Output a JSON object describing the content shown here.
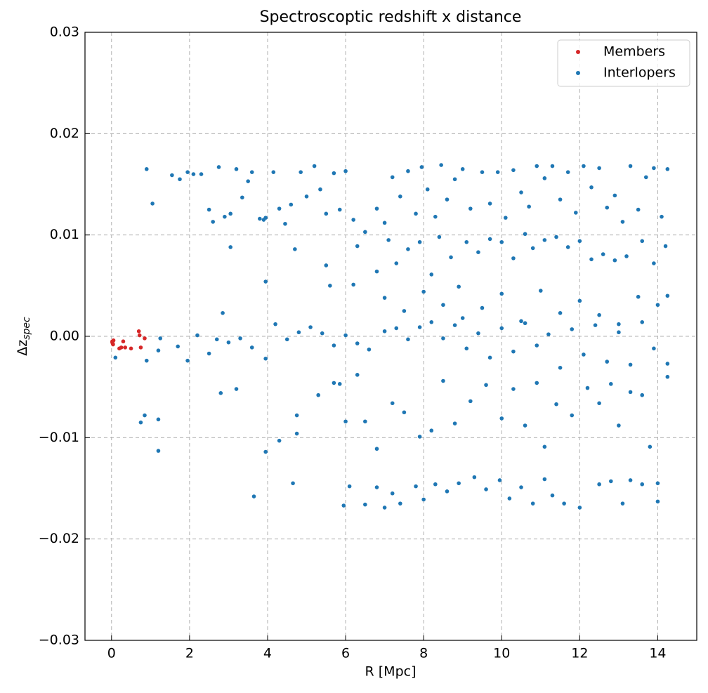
{
  "chart_data": {
    "type": "scatter",
    "title": "Spectroscoptic redshift x distance",
    "xlabel": "R [Mpc]",
    "ylabel": {
      "main": "Δz",
      "sub": "spec"
    },
    "xlim": [
      -0.68,
      15.0
    ],
    "ylim": [
      -0.03,
      0.03
    ],
    "xticks": [
      0,
      2,
      4,
      6,
      8,
      10,
      12,
      14
    ],
    "yticks": [
      {
        "value": -0.03,
        "label": "−0.03"
      },
      {
        "value": -0.02,
        "label": "−0.02"
      },
      {
        "value": -0.01,
        "label": "−0.01"
      },
      {
        "value": 0,
        "label": "0.00"
      },
      0.01,
      0.02,
      0.03
    ],
    "grid": true,
    "legend": "upper right",
    "series": [
      {
        "name": "Members",
        "color": "#d62728",
        "x": [
          0.02,
          0.03,
          0.05,
          0.04,
          0.2,
          0.25,
          0.3,
          0.35,
          0.5,
          0.7,
          0.72,
          0.75,
          0.85,
          0.02
        ],
        "values": [
          -0.0005,
          -0.0007,
          -0.0004,
          -0.0008,
          -0.0012,
          -0.0011,
          -0.0005,
          -0.0011,
          -0.0012,
          0.0005,
          0.0001,
          -0.0011,
          -0.0002,
          -0.0006
        ]
      },
      {
        "name": "Interlopers",
        "color": "#1f77b4",
        "x": [
          0.9,
          1.05,
          1.55,
          1.75,
          1.95,
          2.1,
          2.3,
          2.5,
          2.6,
          2.75,
          2.9,
          3.05,
          3.2,
          3.35,
          3.5,
          3.6,
          3.8,
          3.95,
          4.15,
          4.3,
          4.45,
          4.6,
          4.85,
          5.0,
          5.2,
          5.35,
          5.5,
          5.7,
          5.85,
          6.0,
          6.2,
          6.5,
          6.8,
          7.0,
          7.2,
          7.4,
          7.6,
          7.8,
          7.95,
          8.1,
          8.3,
          8.45,
          8.6,
          8.8,
          9.0,
          9.2,
          9.5,
          9.7,
          9.9,
          10.1,
          10.3,
          10.5,
          10.7,
          10.9,
          11.1,
          11.3,
          11.5,
          11.7,
          11.9,
          12.1,
          12.3,
          12.5,
          12.7,
          12.9,
          13.1,
          13.3,
          13.5,
          13.7,
          13.9,
          14.1,
          14.25,
          6.3,
          6.8,
          7.1,
          7.3,
          7.6,
          7.9,
          8.2,
          8.4,
          8.7,
          8.9,
          9.1,
          9.4,
          9.7,
          10.0,
          10.3,
          10.6,
          10.8,
          11.1,
          11.4,
          11.7,
          12.0,
          12.3,
          12.6,
          12.9,
          13.2,
          13.6,
          13.9,
          14.2,
          3.05,
          3.9,
          4.7,
          5.5,
          7.0,
          7.5,
          8.0,
          8.5,
          9.0,
          9.5,
          10.0,
          10.5,
          11.0,
          11.5,
          12.0,
          12.5,
          13.0,
          13.5,
          14.0,
          14.25,
          3.95,
          5.6,
          6.2,
          2.85,
          0.1,
          0.9,
          1.25,
          1.2,
          1.7,
          1.95,
          2.2,
          2.5,
          2.7,
          3.0,
          3.3,
          3.6,
          3.95,
          4.2,
          4.5,
          4.8,
          5.1,
          5.4,
          5.7,
          6.0,
          6.3,
          6.6,
          7.0,
          7.3,
          7.6,
          7.9,
          8.2,
          8.5,
          8.8,
          9.1,
          9.4,
          9.7,
          10.0,
          10.3,
          10.6,
          10.9,
          11.2,
          11.5,
          11.8,
          12.1,
          12.4,
          12.7,
          13.0,
          13.3,
          13.6,
          13.9,
          14.25,
          0.75,
          0.85,
          1.2,
          1.2,
          2.8,
          3.2,
          3.95,
          4.3,
          4.75,
          4.75,
          5.3,
          5.7,
          5.85,
          6.0,
          6.3,
          6.5,
          6.8,
          7.2,
          7.5,
          7.9,
          8.2,
          8.5,
          8.8,
          9.2,
          9.6,
          10.0,
          10.3,
          10.6,
          10.9,
          11.1,
          11.4,
          11.8,
          12.2,
          12.5,
          12.8,
          13.0,
          13.3,
          13.6,
          13.8,
          14.25,
          3.65,
          4.65,
          5.95,
          6.1,
          6.5,
          6.8,
          7.0,
          7.2,
          7.4,
          7.8,
          8.0,
          8.3,
          8.6,
          8.9,
          9.3,
          9.6,
          9.95,
          10.2,
          10.5,
          10.8,
          11.1,
          11.3,
          11.6,
          12.0,
          12.5,
          12.8,
          13.1,
          13.3,
          13.6,
          14.0,
          14.0
        ],
        "values": [
          0.0165,
          0.0131,
          0.0159,
          0.0155,
          0.0162,
          0.016,
          0.016,
          0.0125,
          0.0113,
          0.0167,
          0.0118,
          0.0121,
          0.0165,
          0.0137,
          0.0153,
          0.0162,
          0.0116,
          0.0117,
          0.0162,
          0.0126,
          0.0111,
          0.013,
          0.0162,
          0.0138,
          0.0168,
          0.0145,
          0.0121,
          0.0161,
          0.0125,
          0.0163,
          0.0115,
          0.0103,
          0.0126,
          0.0112,
          0.0157,
          0.0138,
          0.0163,
          0.0121,
          0.0167,
          0.0145,
          0.0118,
          0.0169,
          0.0135,
          0.0155,
          0.0165,
          0.0126,
          0.0162,
          0.0131,
          0.0162,
          0.0117,
          0.0164,
          0.0142,
          0.0128,
          0.0168,
          0.0156,
          0.0168,
          0.0135,
          0.0162,
          0.0122,
          0.0168,
          0.0147,
          0.0166,
          0.0127,
          0.0139,
          0.0113,
          0.0168,
          0.0125,
          0.0157,
          0.0166,
          0.0118,
          0.0165,
          0.0089,
          0.0064,
          0.0095,
          0.0072,
          0.0086,
          0.0093,
          0.0061,
          0.0098,
          0.0078,
          0.0049,
          0.0093,
          0.0083,
          0.0096,
          0.0093,
          0.0077,
          0.0101,
          0.0087,
          0.0095,
          0.0098,
          0.0088,
          0.0094,
          0.0076,
          0.0081,
          0.0075,
          0.0079,
          0.0094,
          0.0072,
          0.0089,
          0.0088,
          0.0115,
          0.0086,
          0.007,
          0.0038,
          0.0025,
          0.0044,
          0.0031,
          0.0018,
          0.0028,
          0.0042,
          0.0015,
          0.0045,
          0.0023,
          0.0035,
          0.0021,
          0.0012,
          0.0039,
          0.0031,
          0.004,
          0.0054,
          0.005,
          0.0051,
          0.0023,
          -0.0021,
          -0.0024,
          -0.0002,
          -0.0014,
          -0.001,
          -0.0024,
          0.0001,
          -0.0017,
          -0.0003,
          -0.0006,
          -0.0002,
          -0.0011,
          -0.0022,
          0.0012,
          -0.0003,
          0.0004,
          0.0009,
          0.0003,
          -0.0009,
          0.0001,
          -0.0007,
          -0.0013,
          0.0005,
          0.0008,
          -0.0003,
          0.0009,
          0.0014,
          -0.0002,
          0.0011,
          -0.0012,
          0.0003,
          -0.0021,
          0.0008,
          -0.0015,
          0.0013,
          -0.0009,
          0.0002,
          -0.0031,
          0.0007,
          -0.0018,
          0.0011,
          -0.0025,
          0.0004,
          -0.0028,
          0.0014,
          -0.0012,
          -0.0027,
          -0.0085,
          -0.0078,
          -0.0082,
          -0.0113,
          -0.0056,
          -0.0052,
          -0.0114,
          -0.0103,
          -0.0078,
          -0.0096,
          -0.0058,
          -0.0046,
          -0.0047,
          -0.0084,
          -0.0038,
          -0.0084,
          -0.0111,
          -0.0066,
          -0.0075,
          -0.0099,
          -0.0093,
          -0.0044,
          -0.0086,
          -0.0064,
          -0.0048,
          -0.0081,
          -0.0052,
          -0.0088,
          -0.0046,
          -0.0109,
          -0.0067,
          -0.0078,
          -0.0051,
          -0.0066,
          -0.0047,
          -0.0088,
          -0.0055,
          -0.0058,
          -0.0109,
          -0.004,
          -0.0158,
          -0.0145,
          -0.0167,
          -0.0148,
          -0.0166,
          -0.0149,
          -0.0169,
          -0.0155,
          -0.0165,
          -0.0148,
          -0.0161,
          -0.0146,
          -0.0153,
          -0.0145,
          -0.0139,
          -0.0151,
          -0.0142,
          -0.016,
          -0.0149,
          -0.0165,
          -0.0141,
          -0.0157,
          -0.0165,
          -0.0169,
          -0.0146,
          -0.0143,
          -0.0165,
          -0.0142,
          -0.0146,
          -0.0163,
          -0.0145
        ]
      }
    ]
  }
}
